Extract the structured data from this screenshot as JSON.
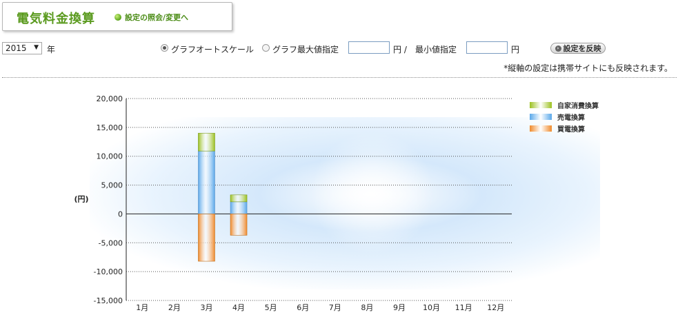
{
  "header": {
    "title": "電気料金換算",
    "settings_link": "設定の照会/変更へ"
  },
  "controls": {
    "year_value": "2015",
    "year_unit": "年",
    "auto_scale_label": "グラフオートスケール",
    "max_label": "グラフ最大値指定",
    "yen_unit_1": "円 /",
    "min_label": "最小値指定",
    "yen_unit_2": "円",
    "apply_button": "設定を反映",
    "note": "*縦軸の設定は携帯サイトにも反映されます。",
    "auto_scale_selected": true,
    "max_value": "",
    "min_value": ""
  },
  "colors": {
    "self_consumption": "#9cc11f",
    "sell": "#5aa8ea",
    "buy": "#f08a2c",
    "title_green": "#5a9a1e"
  },
  "chart_data": {
    "type": "bar",
    "stacked": true,
    "ylabel": "(円)",
    "ylim": [
      -15000,
      20000
    ],
    "yticks": [
      "20,000",
      "15,000",
      "10,000",
      "5,000",
      "0",
      "-5,000",
      "-10,000",
      "-15,000"
    ],
    "ytick_values": [
      20000,
      15000,
      10000,
      5000,
      0,
      -5000,
      -10000,
      -15000
    ],
    "grid": true,
    "legend_position": "top-right",
    "categories": [
      "1月",
      "2月",
      "3月",
      "4月",
      "5月",
      "6月",
      "7月",
      "8月",
      "9月",
      "10月",
      "11月",
      "12月"
    ],
    "series": [
      {
        "name": "自家消費換算",
        "values": [
          0,
          0,
          3100,
          1200,
          0,
          0,
          0,
          0,
          0,
          0,
          0,
          0
        ]
      },
      {
        "name": "売電換算",
        "values": [
          0,
          0,
          10900,
          2100,
          0,
          0,
          0,
          0,
          0,
          0,
          0,
          0
        ]
      },
      {
        "name": "買電換算",
        "values": [
          0,
          0,
          -8200,
          -3700,
          0,
          0,
          0,
          0,
          0,
          0,
          0,
          0
        ]
      }
    ]
  }
}
